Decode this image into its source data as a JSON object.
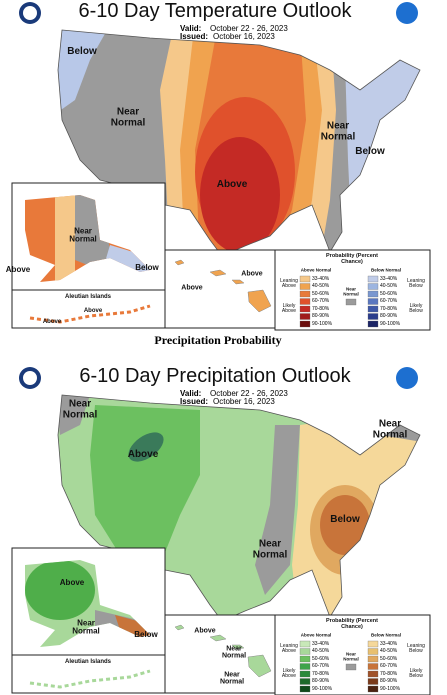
{
  "temperature": {
    "title": "6-10 Day Temperature Outlook",
    "valid_label": "Valid:",
    "valid": "October 22 - 26, 2023",
    "issued_label": "Issued:",
    "issued": "October 16, 2023",
    "map_labels": [
      "Below",
      "Near Normal",
      "Above",
      "Near Normal",
      "Below"
    ],
    "alaska_labels": [
      "Near Normal",
      "Above",
      "Below"
    ],
    "aleutian_label": "Aleutian Islands",
    "aleutian_labels": [
      "Above",
      "Above"
    ],
    "hawaii_labels": [
      "Above",
      "Above"
    ],
    "legend": {
      "title": "Probability (Percent Chance)",
      "above_header": "Above Normal",
      "below_header": "Below Normal",
      "leaning_above": "Leaning Above",
      "likely_above": "Likely Above",
      "near_normal": "Near Normal",
      "leaning_below": "Leaning Below",
      "likely_below": "Likely Below",
      "percents": [
        "33-40%",
        "40-50%",
        "50-60%",
        "60-70%",
        "70-80%",
        "80-90%",
        "90-100%"
      ]
    }
  },
  "section_heading": "Precipitation Probability",
  "precipitation": {
    "title": "6-10 Day Precipitation Outlook",
    "valid_label": "Valid:",
    "valid": "October 22 - 26, 2023",
    "issued_label": "Issued:",
    "issued": "October 16, 2023",
    "map_labels": [
      "Near Normal",
      "Above",
      "Near Normal",
      "Below",
      "Near Normal"
    ],
    "alaska_labels": [
      "Above",
      "Near Normal",
      "Below"
    ],
    "aleutian_label": "Aleutian Islands",
    "hawaii_labels": [
      "Above",
      "Near Normal",
      "Near Normal"
    ],
    "legend": {
      "title": "Probability (Percent Chance)",
      "above_header": "Above Normal",
      "below_header": "Below Normal",
      "leaning_above": "Leaning Above",
      "likely_above": "Likely Above",
      "near_normal": "Near Normal",
      "leaning_below": "Leaning Below",
      "likely_below": "Likely Below",
      "percents": [
        "33-40%",
        "40-50%",
        "50-60%",
        "60-70%",
        "70-80%",
        "80-90%",
        "90-100%"
      ]
    }
  }
}
